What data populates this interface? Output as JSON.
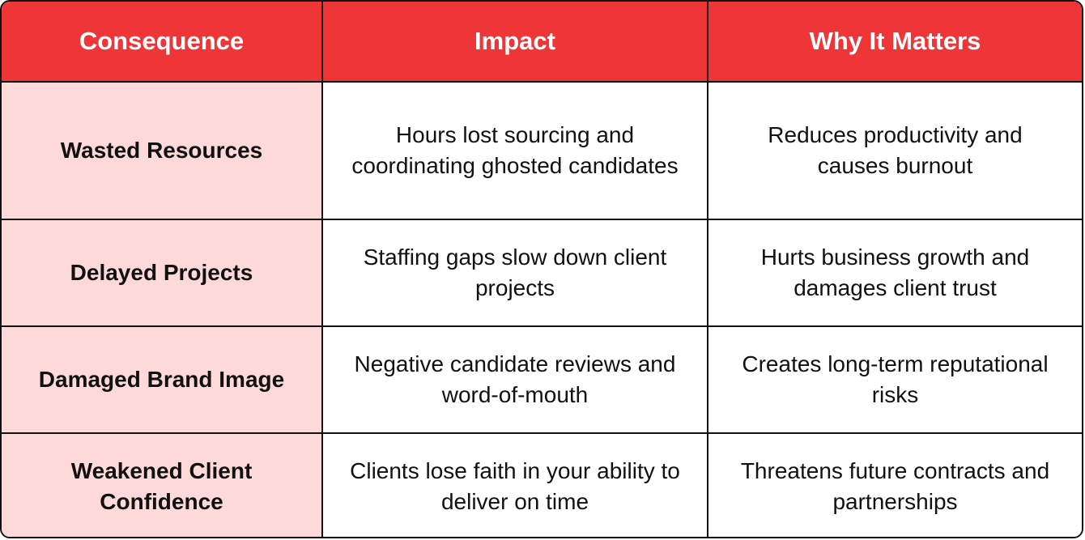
{
  "table": {
    "headers": [
      "Consequence",
      "Impact",
      "Why It Matters"
    ],
    "rows": [
      {
        "consequence": "Wasted Resources",
        "impact": "Hours lost sourcing and coordinating ghosted candidates",
        "why": "Reduces productivity and causes burnout"
      },
      {
        "consequence": "Delayed Projects",
        "impact": "Staffing gaps slow down client projects",
        "why": "Hurts business growth and damages client trust"
      },
      {
        "consequence": "Damaged Brand Image",
        "impact": "Negative candidate reviews and word-of-mouth",
        "why": "Creates long-term reputational risks"
      },
      {
        "consequence": "Weakened Client Confidence",
        "impact": "Clients lose faith in your ability to deliver on time",
        "why": "Threatens future contracts and partnerships"
      }
    ]
  },
  "colors": {
    "header_bg": "#ee3538",
    "header_text": "#ffffff",
    "consequence_bg": "#fdd9d9",
    "border": "#111111"
  }
}
